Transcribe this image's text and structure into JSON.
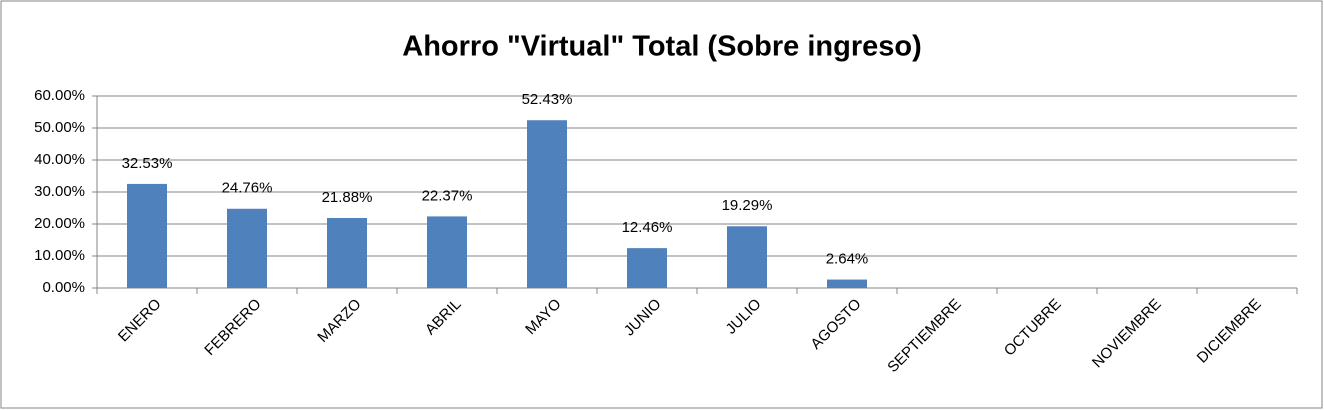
{
  "chart_data": {
    "type": "bar",
    "title": "Ahorro \"Virtual\" Total (Sobre ingreso)",
    "categories": [
      "ENERO",
      "FEBRERO",
      "MARZO",
      "ABRIL",
      "MAYO",
      "JUNIO",
      "JULIO",
      "AGOSTO",
      "SEPTIEMBRE",
      "OCTUBRE",
      "NOVIEMBRE",
      "DICIEMBRE"
    ],
    "values": [
      32.53,
      24.76,
      21.88,
      22.37,
      52.43,
      12.46,
      19.29,
      2.64,
      null,
      null,
      null,
      null
    ],
    "value_labels": [
      "32.53%",
      "24.76%",
      "21.88%",
      "22.37%",
      "52.43%",
      "12.46%",
      "19.29%",
      "2.64%",
      null,
      null,
      null,
      null
    ],
    "color": "#4f81bd",
    "ylim": [
      0,
      60
    ],
    "yticks": [
      {
        "value": 0,
        "label": "0.00%"
      },
      {
        "value": 10,
        "label": "10.00%"
      },
      {
        "value": 20,
        "label": "20.00%"
      },
      {
        "value": 30,
        "label": "30.00%"
      },
      {
        "value": 40,
        "label": "40.00%"
      },
      {
        "value": 50,
        "label": "50.00%"
      },
      {
        "value": 60,
        "label": "60.00%"
      }
    ],
    "grid": true
  }
}
